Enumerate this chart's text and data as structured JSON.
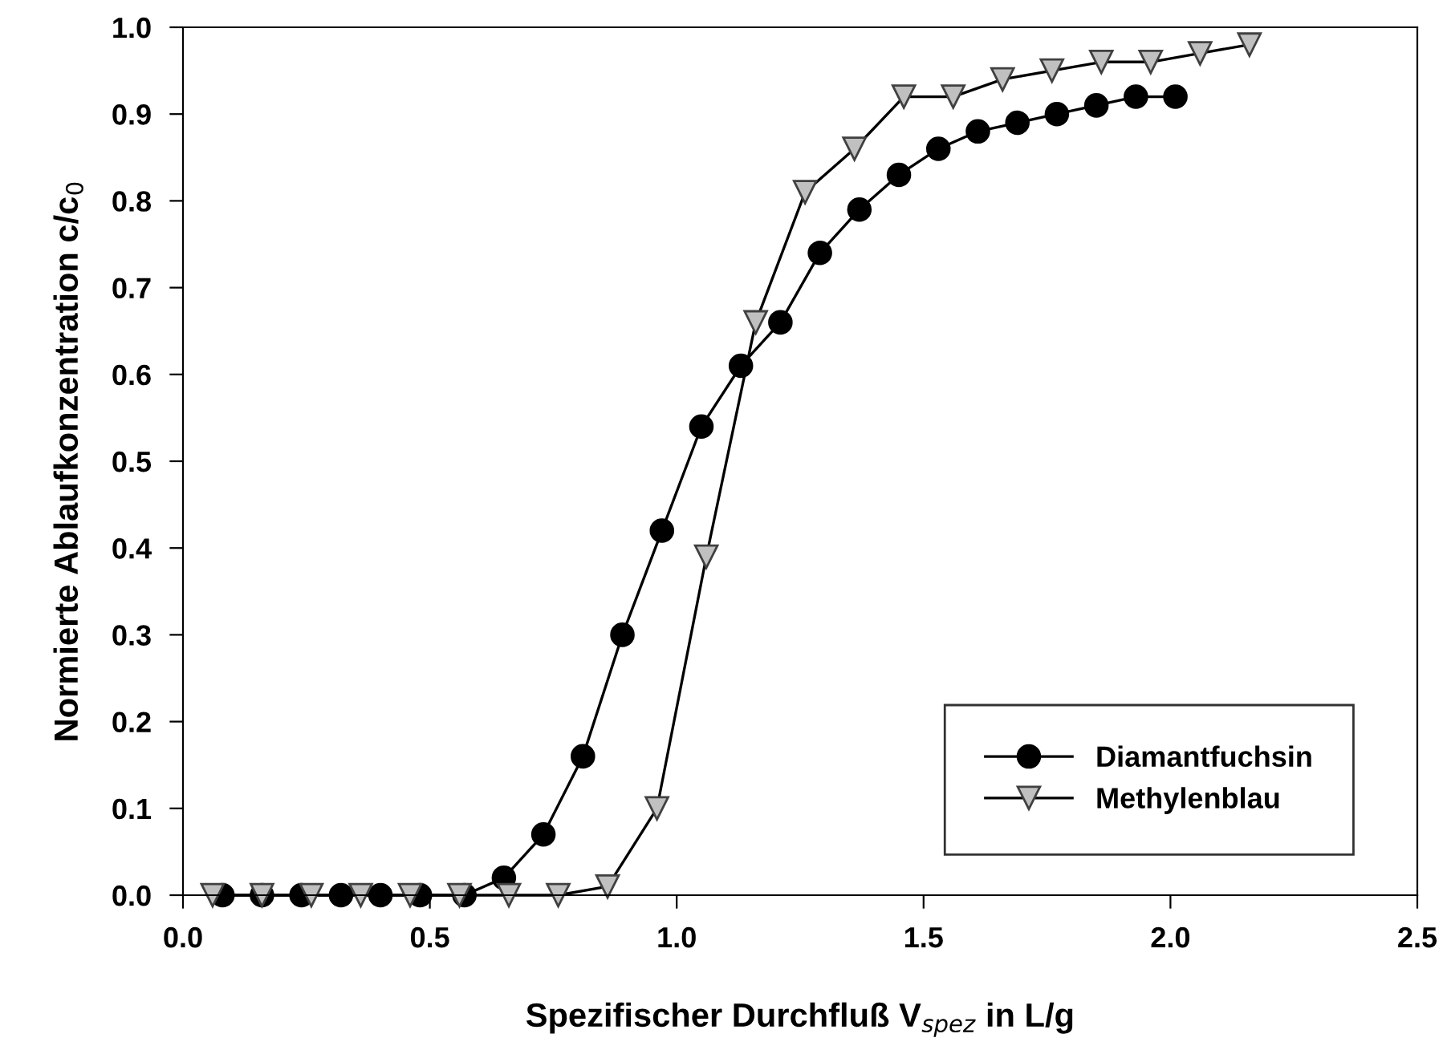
{
  "chart_data": {
    "type": "line",
    "xlabel": "Spezifischer Durchfluß V$_{spez}$ in L/g",
    "ylabel": "Normierte Ablaufkonzentration c/c$_{0}$",
    "xlim": [
      0,
      2.5
    ],
    "xticks": [
      {
        "value": 0,
        "label": "0.0"
      },
      {
        "value": 0.5,
        "label": "0.5"
      },
      {
        "value": 1.0,
        "label": "1.0"
      },
      {
        "value": 1.5,
        "label": "1.5"
      },
      {
        "value": 2.0,
        "label": "2.0"
      },
      {
        "value": 2.5,
        "label": "2.5"
      }
    ],
    "ylim": [
      0,
      1
    ],
    "yticks": [
      {
        "value": 0,
        "label": "0.0"
      },
      {
        "value": 0.1,
        "label": "0.1"
      },
      {
        "value": 0.2,
        "label": "0.2"
      },
      {
        "value": 0.3,
        "label": "0.3"
      },
      {
        "value": 0.4,
        "label": "0.4"
      },
      {
        "value": 0.5,
        "label": "0.5"
      },
      {
        "value": 0.6,
        "label": "0.6"
      },
      {
        "value": 0.7,
        "label": "0.7"
      },
      {
        "value": 0.8,
        "label": "0.8"
      },
      {
        "value": 0.9,
        "label": "0.9"
      },
      {
        "value": 1.0,
        "label": "1.0"
      }
    ],
    "grid": false,
    "legend": "bottom right",
    "series": [
      {
        "name": "Diamantfuchsin",
        "color": "#000000",
        "marker": "circle",
        "x": [
          0.08,
          0.16,
          0.24,
          0.32,
          0.4,
          0.48,
          0.57,
          0.65,
          0.73,
          0.81,
          0.89,
          0.97,
          1.05,
          1.13,
          1.21,
          1.29,
          1.37,
          1.45,
          1.53,
          1.61,
          1.69,
          1.77,
          1.85,
          1.93,
          2.01
        ],
        "values": [
          0,
          0,
          0,
          0,
          0,
          0,
          0,
          0.02,
          0.07,
          0.16,
          0.3,
          0.42,
          0.54,
          0.61,
          0.66,
          0.74,
          0.79,
          0.83,
          0.86,
          0.88,
          0.89,
          0.9,
          0.91,
          0.92,
          0.92
        ]
      },
      {
        "name": "Methylenblau",
        "color": "#c0c0c0",
        "marker": "triangle",
        "x": [
          0.06,
          0.16,
          0.26,
          0.36,
          0.46,
          0.56,
          0.66,
          0.76,
          0.86,
          0.96,
          1.06,
          1.16,
          1.26,
          1.36,
          1.46,
          1.56,
          1.66,
          1.76,
          1.86,
          1.96,
          2.06,
          2.16
        ],
        "values": [
          0,
          0,
          0,
          0,
          0,
          0,
          0,
          0,
          0.01,
          0.1,
          0.39,
          0.66,
          0.81,
          0.86,
          0.92,
          0.92,
          0.94,
          0.95,
          0.96,
          0.96,
          0.97,
          0.98
        ]
      }
    ]
  }
}
